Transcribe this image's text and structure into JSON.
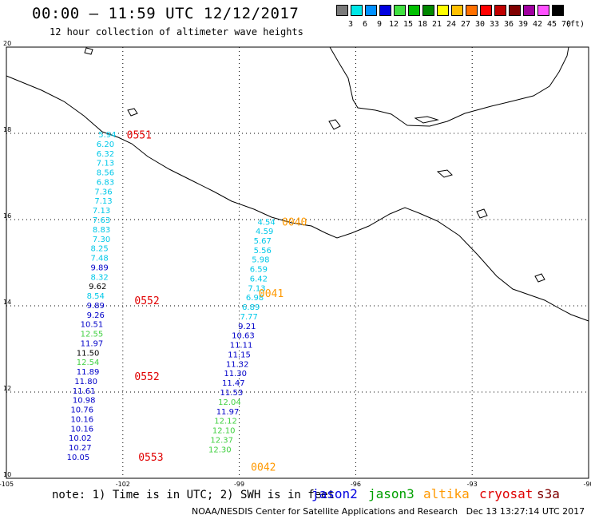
{
  "header": {
    "title": "00:00 – 11:59 UTC 12/12/2017",
    "subtitle": "12 hour collection of altimeter wave heights"
  },
  "color_scale": {
    "unit": "(ft)",
    "bins": [
      {
        "label": "3",
        "color": "#7a7a7a"
      },
      {
        "label": "6",
        "color": "#00e8e8"
      },
      {
        "label": "9",
        "color": "#0090ff"
      },
      {
        "label": "12",
        "color": "#0000e0"
      },
      {
        "label": "15",
        "color": "#40e040"
      },
      {
        "label": "18",
        "color": "#00c000"
      },
      {
        "label": "21",
        "color": "#008800"
      },
      {
        "label": "24",
        "color": "#ffff00"
      },
      {
        "label": "27",
        "color": "#ffc000"
      },
      {
        "label": "30",
        "color": "#ff7000"
      },
      {
        "label": "33",
        "color": "#ff0000"
      },
      {
        "label": "36",
        "color": "#c00000"
      },
      {
        "label": "39",
        "color": "#800000"
      },
      {
        "label": "42",
        "color": "#a000a0"
      },
      {
        "label": "45",
        "color": "#ff50ff"
      },
      {
        "label": "70",
        "color": "#000000"
      }
    ]
  },
  "map": {
    "lon_range": [
      -105,
      -90
    ],
    "lat_range": [
      10,
      20
    ],
    "lon_ticks": [
      "-105",
      "-102",
      "-99",
      "-96",
      "-93",
      "-90"
    ],
    "lat_ticks": [
      "20",
      "18",
      "16",
      "14",
      "12",
      "10"
    ]
  },
  "tracks": [
    {
      "times": [
        {
          "text": "0551",
          "color": "#e00000",
          "lon": -101.9,
          "lat": 17.97
        },
        {
          "text": "0552",
          "color": "#e00000",
          "lon": -101.7,
          "lat": 14.13
        },
        {
          "text": "0552",
          "color": "#e00000",
          "lon": -101.7,
          "lat": 12.37
        },
        {
          "text": "0553",
          "color": "#e00000",
          "lon": -101.6,
          "lat": 10.5
        }
      ],
      "readings": [
        {
          "text": "5.94",
          "color": "#00c8e8",
          "lon": -102.4,
          "lat": 17.98
        },
        {
          "text": "6.20",
          "color": "#00c8e8",
          "lon": -102.45,
          "lat": 17.76
        },
        {
          "text": "6.32",
          "color": "#00c8e8",
          "lon": -102.45,
          "lat": 17.54
        },
        {
          "text": "7.13",
          "color": "#00c8e8",
          "lon": -102.45,
          "lat": 17.32
        },
        {
          "text": "8.56",
          "color": "#00c8e8",
          "lon": -102.45,
          "lat": 17.1
        },
        {
          "text": "6.83",
          "color": "#00c8e8",
          "lon": -102.45,
          "lat": 16.88
        },
        {
          "text": "7.36",
          "color": "#00c8e8",
          "lon": -102.5,
          "lat": 16.66
        },
        {
          "text": "7.13",
          "color": "#00c8e8",
          "lon": -102.5,
          "lat": 16.44
        },
        {
          "text": "7.13",
          "color": "#00c8e8",
          "lon": -102.55,
          "lat": 16.22
        },
        {
          "text": "7.63",
          "color": "#00c8e8",
          "lon": -102.55,
          "lat": 16.0
        },
        {
          "text": "8.83",
          "color": "#00c8e8",
          "lon": -102.55,
          "lat": 15.78
        },
        {
          "text": "7.30",
          "color": "#00c8e8",
          "lon": -102.55,
          "lat": 15.56
        },
        {
          "text": "8.25",
          "color": "#00c8e8",
          "lon": -102.6,
          "lat": 15.34
        },
        {
          "text": "7.48",
          "color": "#00c8e8",
          "lon": -102.6,
          "lat": 15.12
        },
        {
          "text": "9.89",
          "color": "#0000c8",
          "lon": -102.6,
          "lat": 14.9
        },
        {
          "text": "8.32",
          "color": "#00c8e8",
          "lon": -102.6,
          "lat": 14.68
        },
        {
          "text": "9.62",
          "color": "#000000",
          "lon": -102.65,
          "lat": 14.46
        },
        {
          "text": "8.54",
          "color": "#00c8e8",
          "lon": -102.7,
          "lat": 14.24
        },
        {
          "text": "9.89",
          "color": "#0000c8",
          "lon": -102.7,
          "lat": 14.02
        },
        {
          "text": "9.26",
          "color": "#0000c8",
          "lon": -102.7,
          "lat": 13.8
        },
        {
          "text": "10.51",
          "color": "#0000c8",
          "lon": -102.8,
          "lat": 13.58
        },
        {
          "text": "12.55",
          "color": "#40d040",
          "lon": -102.8,
          "lat": 13.36
        },
        {
          "text": "11.97",
          "color": "#0000c8",
          "lon": -102.8,
          "lat": 13.14
        },
        {
          "text": "11.50",
          "color": "#000000",
          "lon": -102.9,
          "lat": 12.92
        },
        {
          "text": "12.54",
          "color": "#40d040",
          "lon": -102.9,
          "lat": 12.7
        },
        {
          "text": "11.89",
          "color": "#0000c8",
          "lon": -102.9,
          "lat": 12.48
        },
        {
          "text": "11.80",
          "color": "#0000c8",
          "lon": -102.95,
          "lat": 12.26
        },
        {
          "text": "11.61",
          "color": "#0000c8",
          "lon": -103.0,
          "lat": 12.04
        },
        {
          "text": "10.98",
          "color": "#0000c8",
          "lon": -103.0,
          "lat": 11.82
        },
        {
          "text": "10.76",
          "color": "#0000c8",
          "lon": -103.05,
          "lat": 11.6
        },
        {
          "text": "10.16",
          "color": "#0000c8",
          "lon": -103.05,
          "lat": 11.38
        },
        {
          "text": "10.16",
          "color": "#0000c8",
          "lon": -103.05,
          "lat": 11.16
        },
        {
          "text": "10.02",
          "color": "#0000c8",
          "lon": -103.1,
          "lat": 10.94
        },
        {
          "text": "10.27",
          "color": "#0000c8",
          "lon": -103.1,
          "lat": 10.72
        },
        {
          "text": "10.05",
          "color": "#0000c8",
          "lon": -103.15,
          "lat": 10.5
        }
      ]
    },
    {
      "times": [
        {
          "text": "0040",
          "color": "#ff9900",
          "lon": -97.9,
          "lat": 15.95
        },
        {
          "text": "0041",
          "color": "#ff9900",
          "lon": -98.5,
          "lat": 14.3
        },
        {
          "text": "0042",
          "color": "#ff9900",
          "lon": -98.7,
          "lat": 10.27
        }
      ],
      "readings": [
        {
          "text": "4.54",
          "color": "#00c8e8",
          "lon": -98.3,
          "lat": 15.95
        },
        {
          "text": "4.59",
          "color": "#00c8e8",
          "lon": -98.35,
          "lat": 15.74
        },
        {
          "text": "5.67",
          "color": "#00c8e8",
          "lon": -98.4,
          "lat": 15.52
        },
        {
          "text": "5.56",
          "color": "#00c8e8",
          "lon": -98.4,
          "lat": 15.3
        },
        {
          "text": "5.98",
          "color": "#00c8e8",
          "lon": -98.45,
          "lat": 15.08
        },
        {
          "text": "6.59",
          "color": "#00c8e8",
          "lon": -98.5,
          "lat": 14.86
        },
        {
          "text": "6.42",
          "color": "#00c8e8",
          "lon": -98.5,
          "lat": 14.64
        },
        {
          "text": "7.13",
          "color": "#00c8e8",
          "lon": -98.55,
          "lat": 14.42
        },
        {
          "text": "6.98",
          "color": "#00c8e8",
          "lon": -98.6,
          "lat": 14.2
        },
        {
          "text": "6.89",
          "color": "#00c8e8",
          "lon": -98.7,
          "lat": 13.98
        },
        {
          "text": "7.77",
          "color": "#00c8e8",
          "lon": -98.75,
          "lat": 13.76
        },
        {
          "text": "9.21",
          "color": "#0000c8",
          "lon": -98.8,
          "lat": 13.54
        },
        {
          "text": "10.63",
          "color": "#0000c8",
          "lon": -98.9,
          "lat": 13.32
        },
        {
          "text": "11.11",
          "color": "#0000c8",
          "lon": -98.95,
          "lat": 13.1
        },
        {
          "text": "11.15",
          "color": "#0000c8",
          "lon": -99.0,
          "lat": 12.88
        },
        {
          "text": "11.32",
          "color": "#0000c8",
          "lon": -99.05,
          "lat": 12.66
        },
        {
          "text": "11.30",
          "color": "#0000c8",
          "lon": -99.1,
          "lat": 12.44
        },
        {
          "text": "11.47",
          "color": "#0000c8",
          "lon": -99.15,
          "lat": 12.22
        },
        {
          "text": "11.53",
          "color": "#0000c8",
          "lon": -99.2,
          "lat": 12.0
        },
        {
          "text": "12.04",
          "color": "#40d040",
          "lon": -99.25,
          "lat": 11.78
        },
        {
          "text": "11.97",
          "color": "#0000c8",
          "lon": -99.3,
          "lat": 11.56
        },
        {
          "text": "12.12",
          "color": "#40d040",
          "lon": -99.35,
          "lat": 11.34
        },
        {
          "text": "12.10",
          "color": "#40d040",
          "lon": -99.4,
          "lat": 11.12
        },
        {
          "text": "12.37",
          "color": "#40d040",
          "lon": -99.45,
          "lat": 10.9
        },
        {
          "text": "12.30",
          "color": "#40d040",
          "lon": -99.5,
          "lat": 10.68
        }
      ]
    }
  ],
  "note": {
    "prefix": "note: 1) Time is in UTC; 2) SWH is in feet",
    "satellites": [
      {
        "name": "jason2",
        "color": "#0000e0"
      },
      {
        "name": "jason3",
        "color": "#00a000"
      },
      {
        "name": "altika",
        "color": "#ff9900"
      },
      {
        "name": "cryosat",
        "color": "#e00000"
      },
      {
        "name": "s3a",
        "color": "#800000"
      }
    ]
  },
  "credit": {
    "center": "NOAA/NESDIS Center for Satellite Applications and Research",
    "timestamp": "Dec 13 13:27:14 UTC 2017"
  }
}
